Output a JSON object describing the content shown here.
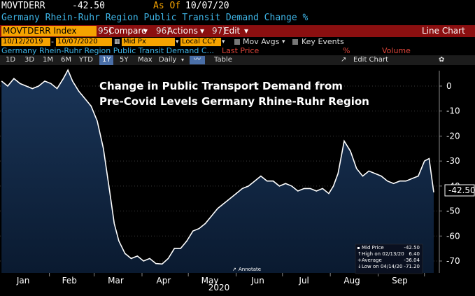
{
  "header": {
    "ticker": "MOVTDERR",
    "last_value": "-42.50",
    "as_of_label": "As Of",
    "as_of_date": "10/07/20",
    "description": "Germany Rhein-Ruhr Region Public Transit Demand Change %"
  },
  "toolbar": {
    "index_label": "MOVTDERR Index",
    "compare_num": "95)",
    "compare_label": "Compare",
    "actions_num": "96)",
    "actions_label": "Actions",
    "edit_num": "97)",
    "edit_label": "Edit",
    "view_label": "Line Chart"
  },
  "controls": {
    "start_date": "10/12/2019",
    "end_date": "10/07/2020",
    "price_field": "Mid Px",
    "currency": "Local CCY",
    "mov_avgs_label": "Mov Avgs",
    "key_events_label": "Key Events"
  },
  "legend_row": {
    "series_label": "Germany Rhein-Ruhr Region Public Transit Demand C...",
    "last_price_label": "Last Price",
    "pct_symbol": "%",
    "volume_label": "Volume"
  },
  "periods": [
    "1D",
    "3D",
    "1M",
    "6M",
    "YTD",
    "1Y",
    "5Y",
    "Max"
  ],
  "period_selected": "1Y",
  "freq_label": "Daily",
  "table_label": "Table",
  "edit_chart_label": "Edit Chart",
  "annotation": {
    "line1": "Change in Public Transport Demand from",
    "line2": "Pre-Covid Levels Germany Rhine-Ruhr Region"
  },
  "chart_legend": {
    "rows": [
      {
        "label": "Mid Price",
        "value": "-42.50"
      },
      {
        "label": "High on 02/13/20",
        "value": "6.40"
      },
      {
        "label": "Average",
        "value": "-36.04"
      },
      {
        "label": "Low on 04/14/20",
        "value": "-71.20"
      }
    ],
    "annotate_label": "Annotate"
  },
  "colors": {
    "background": "#000000",
    "area_fill": "#0d2038",
    "line": "#ffffff",
    "accent_orange": "#f5a300",
    "toolbar_red": "#8b0f10",
    "cyan": "#3fb6e8"
  },
  "chart_data": {
    "type": "area",
    "ylim": [
      -75,
      5
    ],
    "yticks": [
      0,
      -10,
      -20,
      -30,
      -40,
      -50,
      -60,
      -70
    ],
    "last_value_label": "-42.50",
    "x_tick_labels": [
      "Jan",
      "Feb",
      "Mar",
      "Apr",
      "May",
      "Jun",
      "Jul",
      "Aug",
      "Sep"
    ],
    "xlabel": "2020",
    "series": [
      {
        "name": "Germany Rhein-Ruhr Region Public Transit Demand Change %",
        "x": [
          "2020-01-01",
          "2020-01-05",
          "2020-01-09",
          "2020-01-13",
          "2020-01-17",
          "2020-01-21",
          "2020-01-25",
          "2020-01-29",
          "2020-02-02",
          "2020-02-06",
          "2020-02-10",
          "2020-02-13",
          "2020-02-16",
          "2020-02-20",
          "2020-02-24",
          "2020-02-28",
          "2020-03-03",
          "2020-03-07",
          "2020-03-11",
          "2020-03-14",
          "2020-03-17",
          "2020-03-21",
          "2020-03-25",
          "2020-03-29",
          "2020-04-02",
          "2020-04-06",
          "2020-04-10",
          "2020-04-14",
          "2020-04-18",
          "2020-04-22",
          "2020-04-26",
          "2020-04-30",
          "2020-05-04",
          "2020-05-08",
          "2020-05-12",
          "2020-05-16",
          "2020-05-20",
          "2020-05-24",
          "2020-05-28",
          "2020-06-01",
          "2020-06-05",
          "2020-06-09",
          "2020-06-13",
          "2020-06-17",
          "2020-06-21",
          "2020-06-25",
          "2020-06-29",
          "2020-07-03",
          "2020-07-07",
          "2020-07-11",
          "2020-07-15",
          "2020-07-19",
          "2020-07-23",
          "2020-07-27",
          "2020-07-31",
          "2020-08-03",
          "2020-08-06",
          "2020-08-10",
          "2020-08-14",
          "2020-08-18",
          "2020-08-22",
          "2020-08-26",
          "2020-08-30",
          "2020-09-03",
          "2020-09-07",
          "2020-09-11",
          "2020-09-15",
          "2020-09-19",
          "2020-09-23",
          "2020-09-27",
          "2020-10-01",
          "2020-10-04",
          "2020-10-07"
        ],
        "y": [
          2,
          0,
          3,
          1,
          0,
          -1,
          0,
          2,
          1,
          -1,
          3,
          6.4,
          2,
          -2,
          -5,
          -8,
          -14,
          -25,
          -42,
          -55,
          -62,
          -67,
          -69,
          -68,
          -70,
          -69,
          -71,
          -71.2,
          -69,
          -65,
          -65,
          -62,
          -58,
          -57,
          -55,
          -52,
          -49,
          -47,
          -45,
          -43,
          -41,
          -40,
          -38,
          -36,
          -38,
          -38,
          -40,
          -39,
          -40,
          -42,
          -41,
          -41,
          -42,
          -41,
          -43,
          -40,
          -35,
          -22,
          -26,
          -33,
          -36,
          -34,
          -35,
          -36,
          -38,
          -39,
          -38,
          -38,
          -37,
          -36,
          -30,
          -29,
          -42.5
        ]
      }
    ]
  }
}
